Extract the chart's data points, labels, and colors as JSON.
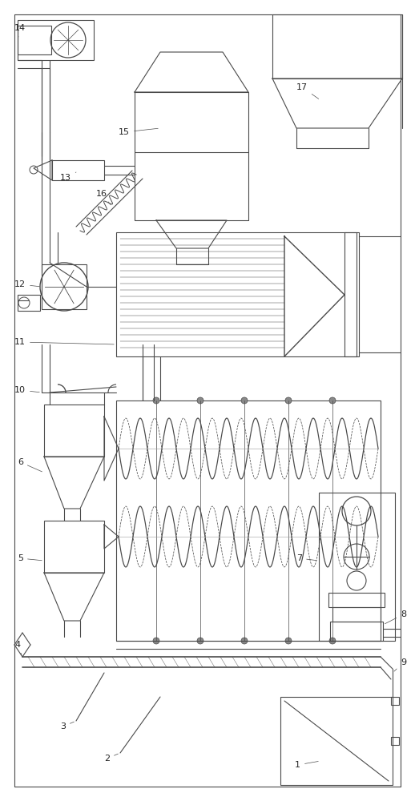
{
  "bg_color": "#ffffff",
  "line_color": "#4a4a4a",
  "lw": 0.8,
  "figsize": [
    5.18,
    10.0
  ],
  "dpi": 100
}
